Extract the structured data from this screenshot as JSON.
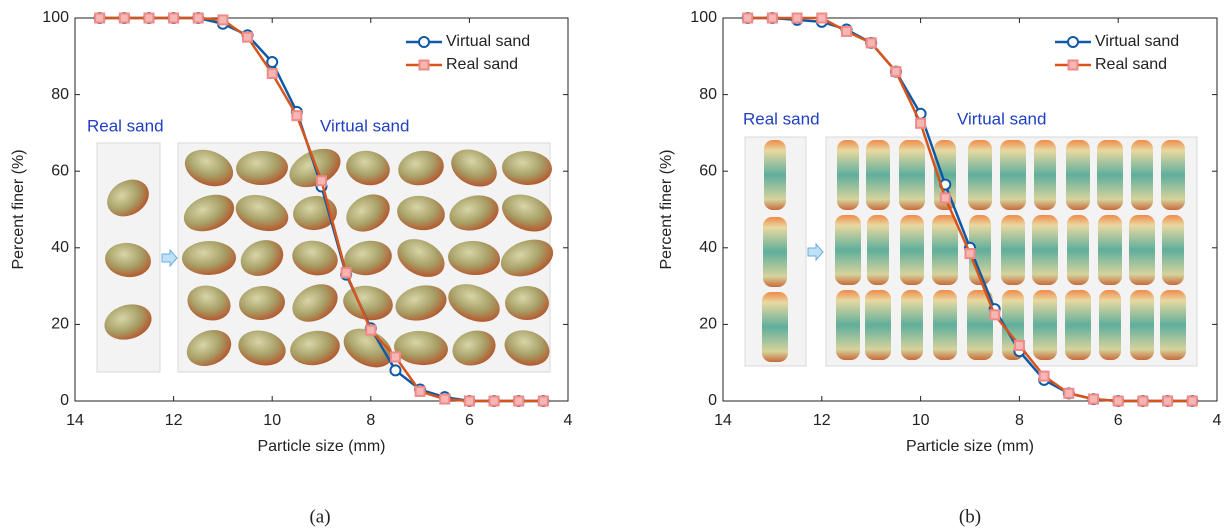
{
  "chart_data": [
    {
      "type": "line",
      "panel_label": "(a)",
      "xlabel": "Particle size (mm)",
      "ylabel": "Percent finer (%)",
      "x": [
        13.5,
        13,
        12.5,
        12,
        11.5,
        11,
        10.5,
        10,
        9.5,
        9,
        8.5,
        8,
        7.5,
        7,
        6.5,
        6,
        5.5,
        5,
        4.5
      ],
      "series": [
        {
          "name": "Virtual sand",
          "color": "#0e5aa7",
          "marker": "circle",
          "values": [
            100,
            100,
            100,
            100,
            100,
            98.5,
            95.5,
            88.5,
            75.5,
            56,
            33,
            19,
            8,
            3,
            1,
            0,
            0,
            0,
            0
          ]
        },
        {
          "name": "Real sand",
          "color": "#d9541a",
          "marker": "square",
          "values": [
            100,
            100,
            100,
            100,
            100,
            99.5,
            95,
            85.5,
            74.5,
            57.5,
            33.5,
            18.5,
            11.5,
            2.5,
            0.5,
            0,
            0,
            0,
            0
          ]
        }
      ],
      "xlim": [
        14,
        4
      ],
      "ylim": [
        0,
        100
      ],
      "xticks": [
        14,
        12,
        10,
        8,
        6,
        4
      ],
      "yticks": [
        0,
        20,
        40,
        60,
        80,
        100
      ],
      "legend": "upper right",
      "annotations": [
        "Real sand",
        "Virtual sand"
      ]
    },
    {
      "type": "line",
      "panel_label": "(b)",
      "xlabel": "Particle size (mm)",
      "ylabel": "Percent finer (%)",
      "x": [
        13.5,
        13,
        12.5,
        12,
        11.5,
        11,
        10.5,
        10,
        9.5,
        9,
        8.5,
        8,
        7.5,
        7,
        6.5,
        6,
        5.5,
        5,
        4.5
      ],
      "series": [
        {
          "name": "Virtual sand",
          "color": "#0e5aa7",
          "marker": "circle",
          "values": [
            100,
            100,
            99.5,
            99,
            97,
            93.5,
            86,
            75,
            56.5,
            40,
            24,
            13,
            5.5,
            2,
            0.5,
            0,
            0,
            0,
            0
          ]
        },
        {
          "name": "Real sand",
          "color": "#d9541a",
          "marker": "square",
          "values": [
            100,
            100,
            100,
            100,
            96.5,
            93.5,
            86,
            72.5,
            53,
            38.5,
            22.5,
            14.5,
            6.5,
            2,
            0.5,
            0,
            0,
            0,
            0
          ]
        }
      ],
      "xlim": [
        14,
        4
      ],
      "ylim": [
        0,
        100
      ],
      "xticks": [
        14,
        12,
        10,
        8,
        6,
        4
      ],
      "yticks": [
        0,
        20,
        40,
        60,
        80,
        100
      ],
      "legend": "upper right",
      "annotations": [
        "Real sand",
        "Virtual sand"
      ]
    }
  ]
}
